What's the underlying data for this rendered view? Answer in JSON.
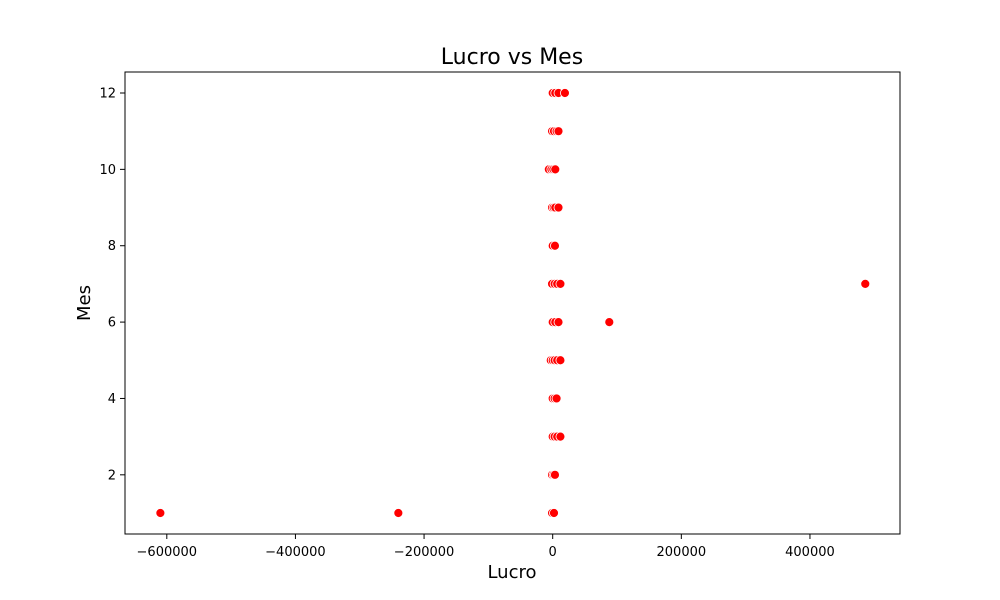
{
  "chart_data": {
    "type": "scatter",
    "title": "Lucro vs Mes",
    "xlabel": "Lucro",
    "ylabel": "Mes",
    "xlim": [
      -665000,
      540000
    ],
    "ylim": [
      0.45,
      12.55
    ],
    "xticks": [
      -600000,
      -400000,
      -200000,
      0,
      200000,
      400000
    ],
    "xtick_labels": [
      "−600000",
      "−400000",
      "−200000",
      "0",
      "200000",
      "400000"
    ],
    "yticks": [
      2,
      4,
      6,
      8,
      10,
      12
    ],
    "ytick_labels": [
      "2",
      "4",
      "6",
      "8",
      "10",
      "12"
    ],
    "grid": false,
    "marker_color": "#ff0000",
    "marker_edge_color": "#ffffff",
    "series": [
      {
        "points": [
          {
            "x": -610000,
            "y": 1
          },
          {
            "x": -240000,
            "y": 1
          },
          {
            "x": -1000,
            "y": 1
          },
          {
            "x": 2000,
            "y": 1
          },
          {
            "x": -1000,
            "y": 2
          },
          {
            "x": 1500,
            "y": 2
          },
          {
            "x": 3500,
            "y": 2
          },
          {
            "x": 0,
            "y": 3
          },
          {
            "x": 3000,
            "y": 3
          },
          {
            "x": 7000,
            "y": 3
          },
          {
            "x": 12000,
            "y": 3
          },
          {
            "x": 0,
            "y": 4
          },
          {
            "x": 3000,
            "y": 4
          },
          {
            "x": 6000,
            "y": 4
          },
          {
            "x": -3000,
            "y": 5
          },
          {
            "x": 0,
            "y": 5
          },
          {
            "x": 3000,
            "y": 5
          },
          {
            "x": 7000,
            "y": 5
          },
          {
            "x": 12000,
            "y": 5
          },
          {
            "x": 0,
            "y": 6
          },
          {
            "x": 4000,
            "y": 6
          },
          {
            "x": 9000,
            "y": 6
          },
          {
            "x": 88000,
            "y": 6
          },
          {
            "x": -1000,
            "y": 7
          },
          {
            "x": 3000,
            "y": 7
          },
          {
            "x": 7000,
            "y": 7
          },
          {
            "x": 12000,
            "y": 7
          },
          {
            "x": 486000,
            "y": 7
          },
          {
            "x": 0,
            "y": 8
          },
          {
            "x": 3500,
            "y": 8
          },
          {
            "x": -1000,
            "y": 9
          },
          {
            "x": 1500,
            "y": 9
          },
          {
            "x": 4000,
            "y": 9
          },
          {
            "x": 9000,
            "y": 9
          },
          {
            "x": -6000,
            "y": 10
          },
          {
            "x": -2000,
            "y": 10
          },
          {
            "x": 1000,
            "y": 10
          },
          {
            "x": 4000,
            "y": 10
          },
          {
            "x": -1000,
            "y": 11
          },
          {
            "x": 2000,
            "y": 11
          },
          {
            "x": 6000,
            "y": 11
          },
          {
            "x": 9000,
            "y": 11
          },
          {
            "x": 0,
            "y": 12
          },
          {
            "x": 4000,
            "y": 12
          },
          {
            "x": 9000,
            "y": 12
          },
          {
            "x": 19000,
            "y": 12
          }
        ]
      }
    ]
  }
}
